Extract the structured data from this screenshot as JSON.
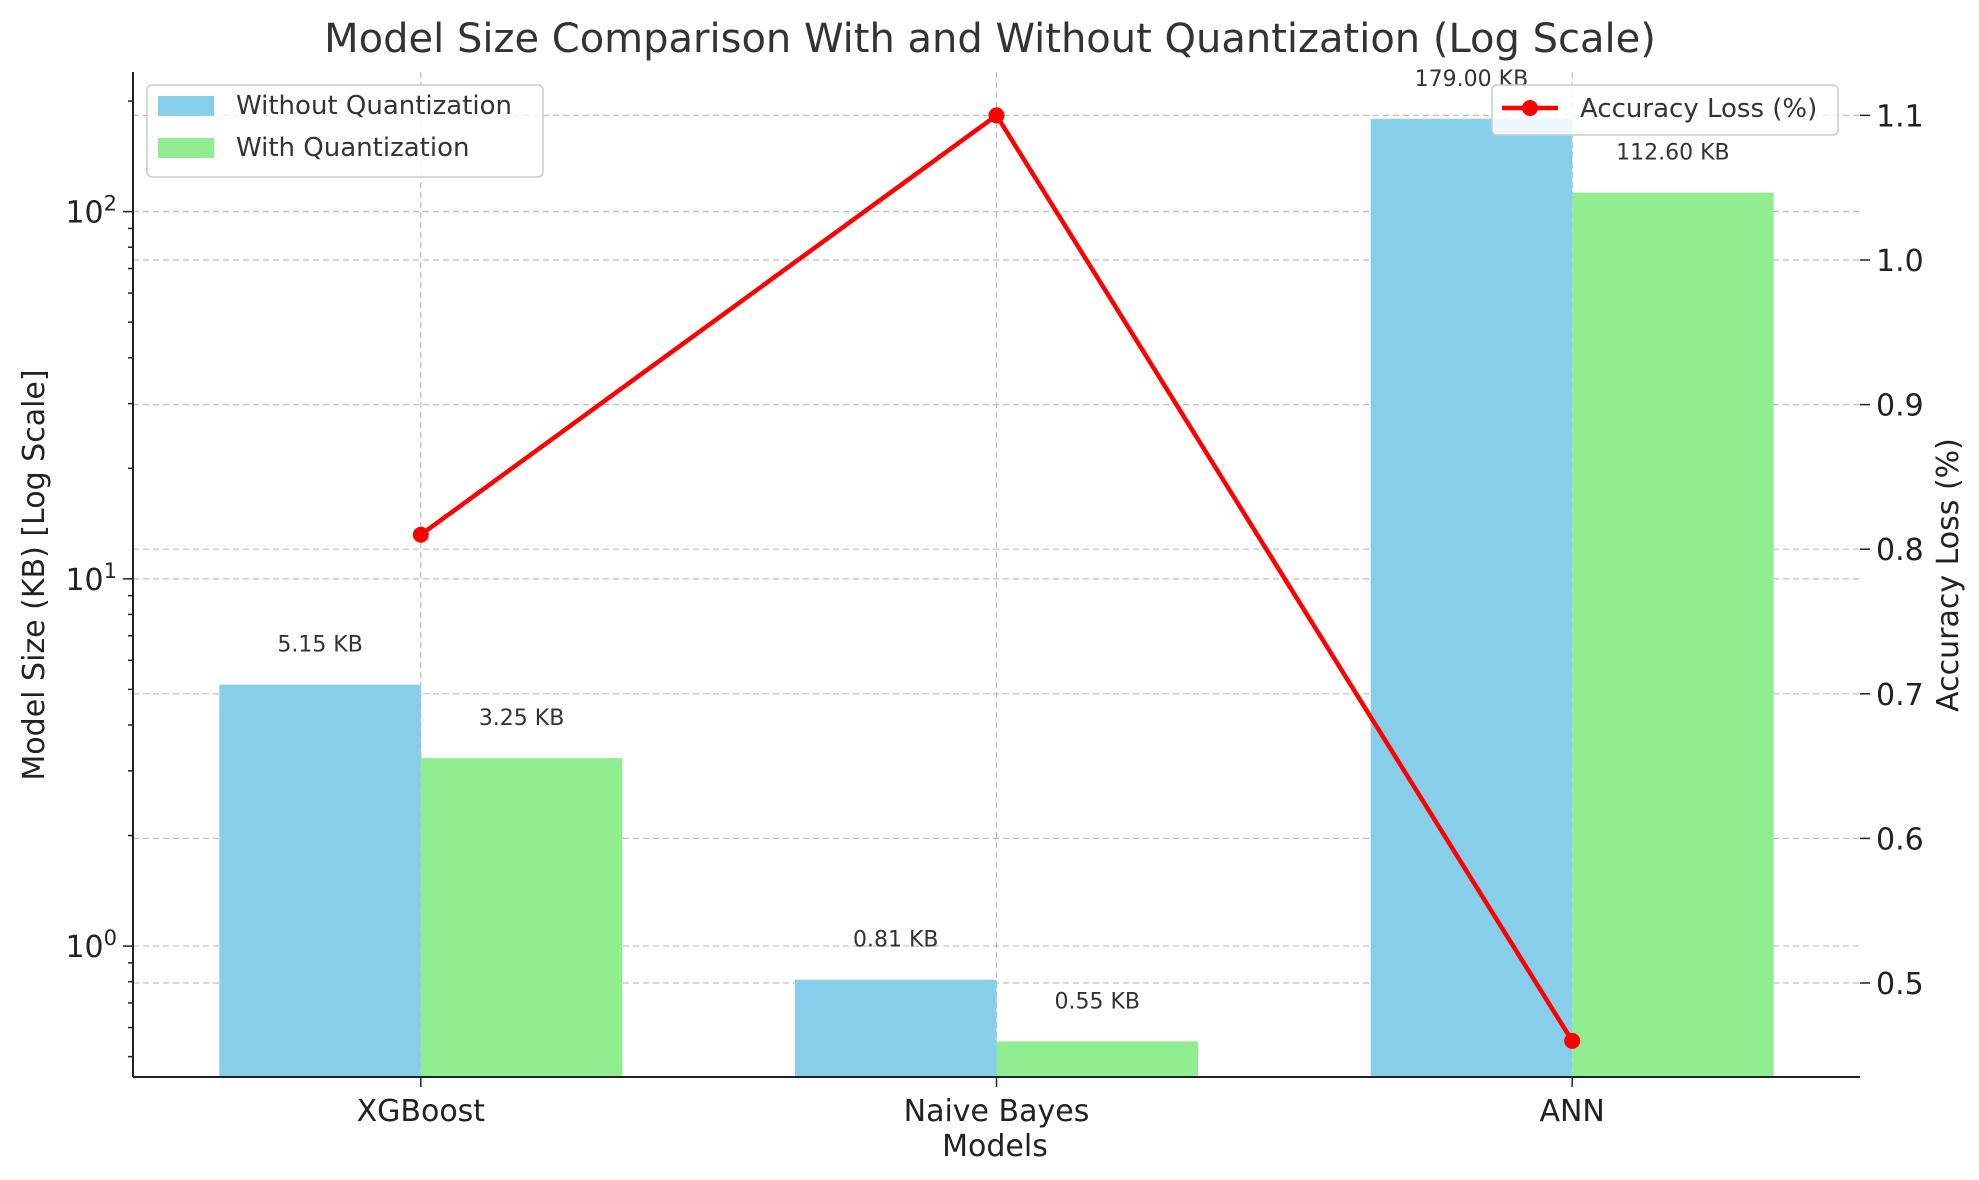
{
  "chart_data": {
    "type": "bar",
    "title": "Model Size Comparison With and Without Quantization (Log Scale)",
    "xlabel": "Models",
    "ylabel": "Model Size (KB) [Log Scale]",
    "y2label": "Accuracy Loss (%)",
    "yscale": "log",
    "ylim": [
      0.44,
      240
    ],
    "y2lim": [
      0.435,
      1.13
    ],
    "categories": [
      "XGBoost",
      "Naive Bayes",
      "ANN"
    ],
    "series": [
      {
        "name": "Without Quantization",
        "values": [
          5.15,
          0.81,
          179.0
        ],
        "labels": [
          "5.15 KB",
          "0.81 KB",
          "179.00 KB"
        ],
        "color": "#87ceeb"
      },
      {
        "name": "With Quantization",
        "values": [
          3.25,
          0.55,
          112.6
        ],
        "labels": [
          "3.25 KB",
          "0.55 KB",
          "112.60 KB"
        ],
        "color": "#90ee90"
      }
    ],
    "line_series": {
      "name": "Accuracy Loss (%)",
      "values": [
        0.81,
        1.1,
        0.46
      ],
      "color": "#ff0000",
      "axis": "right"
    },
    "y_ticks": [
      {
        "value": 1,
        "base": "10",
        "exp": "0"
      },
      {
        "value": 10,
        "base": "10",
        "exp": "1"
      },
      {
        "value": 100,
        "base": "10",
        "exp": "2"
      }
    ],
    "y2_ticks": [
      "0.5",
      "0.6",
      "0.7",
      "0.8",
      "0.9",
      "1.0",
      "1.1"
    ],
    "grid": true,
    "legend_left": "top-left",
    "legend_right": "top-right"
  }
}
